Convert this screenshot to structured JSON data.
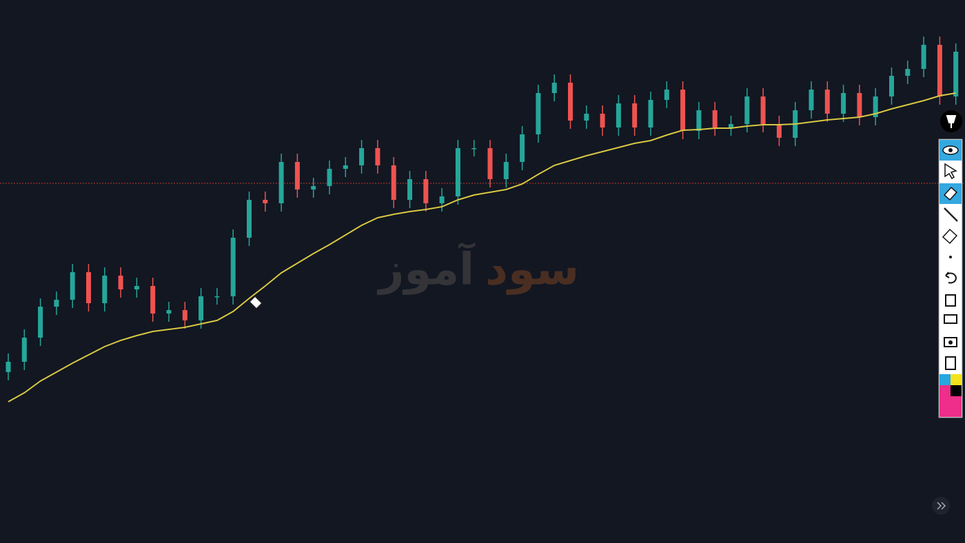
{
  "chart_data": {
    "type": "candlestick",
    "ylim": [
      0,
      788
    ],
    "up_color": "#26a69a",
    "down_color": "#ef5350",
    "open": [
      248,
      263,
      298,
      343,
      353,
      393,
      348,
      388,
      368,
      373,
      333,
      338,
      323,
      358,
      358,
      443,
      498,
      493,
      553,
      513,
      518,
      543,
      548,
      573,
      548,
      498,
      528,
      493,
      503,
      573,
      573,
      528,
      553,
      593,
      653,
      668,
      613,
      623,
      603,
      638,
      603,
      643,
      658,
      598,
      628,
      603,
      608,
      648,
      608,
      588,
      628,
      658,
      623,
      653,
      618,
      648,
      678,
      688,
      723,
      648
    ],
    "high": [
      275,
      310,
      355,
      365,
      405,
      405,
      400,
      400,
      385,
      385,
      350,
      350,
      370,
      370,
      455,
      510,
      510,
      565,
      565,
      530,
      555,
      560,
      585,
      585,
      560,
      540,
      540,
      515,
      585,
      585,
      585,
      565,
      605,
      665,
      680,
      680,
      635,
      635,
      650,
      650,
      655,
      670,
      670,
      640,
      640,
      620,
      660,
      660,
      620,
      640,
      670,
      670,
      665,
      665,
      660,
      690,
      700,
      735,
      735,
      725
    ],
    "low": [
      236,
      251,
      286,
      331,
      341,
      336,
      336,
      356,
      356,
      321,
      321,
      311,
      311,
      346,
      346,
      431,
      481,
      481,
      501,
      501,
      506,
      531,
      536,
      536,
      486,
      486,
      481,
      481,
      491,
      561,
      516,
      516,
      541,
      581,
      641,
      601,
      601,
      591,
      591,
      591,
      591,
      631,
      586,
      586,
      591,
      591,
      596,
      596,
      576,
      576,
      616,
      611,
      611,
      606,
      606,
      636,
      666,
      676,
      636,
      636
    ],
    "close": [
      263,
      298,
      343,
      353,
      393,
      348,
      388,
      368,
      373,
      333,
      338,
      323,
      358,
      358,
      443,
      498,
      493,
      553,
      513,
      518,
      543,
      548,
      573,
      548,
      498,
      528,
      493,
      503,
      573,
      573,
      528,
      553,
      593,
      653,
      668,
      613,
      623,
      603,
      638,
      603,
      643,
      658,
      598,
      628,
      603,
      608,
      648,
      608,
      588,
      628,
      658,
      623,
      653,
      618,
      648,
      678,
      688,
      723,
      648,
      713
    ],
    "ma": {
      "color": "#d9c843",
      "values": [
        205,
        218,
        235,
        248,
        261,
        273,
        285,
        294,
        301,
        307,
        310,
        313,
        318,
        323,
        336,
        355,
        373,
        392,
        406,
        420,
        433,
        447,
        461,
        472,
        477,
        481,
        484,
        488,
        498,
        505,
        509,
        513,
        521,
        535,
        548,
        555,
        562,
        568,
        574,
        580,
        584,
        592,
        599,
        600,
        602,
        602,
        605,
        607,
        607,
        608,
        611,
        614,
        616,
        618,
        623,
        630,
        636,
        642,
        649,
        653
      ]
    },
    "price_line": {
      "value": 522,
      "color": "#c0392b"
    }
  },
  "watermark": {
    "part1": "سود",
    "part2": "آموز"
  }
}
